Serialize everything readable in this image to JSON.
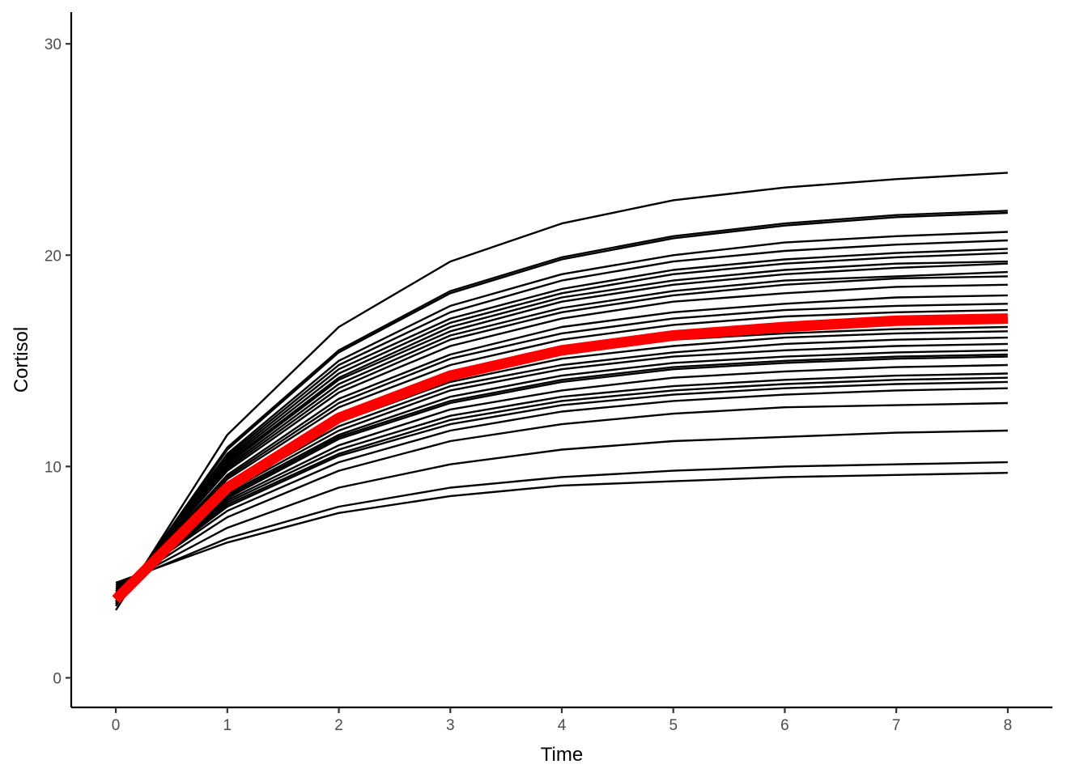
{
  "chart_data": {
    "type": "line",
    "title": "",
    "xlabel": "Time",
    "ylabel": "Cortisol",
    "x": [
      0,
      1,
      2,
      3,
      4,
      5,
      6,
      7,
      8
    ],
    "xlim": [
      -0.4,
      8.4
    ],
    "ylim": [
      -1.4,
      31.5
    ],
    "x_ticks": [
      "0",
      "1",
      "2",
      "3",
      "4",
      "5",
      "6",
      "7",
      "8"
    ],
    "y_ticks": [
      "0",
      "10",
      "20",
      "30"
    ],
    "y_tick_values": [
      0,
      10,
      20,
      30
    ],
    "grid": false,
    "legend": "none",
    "colors": {
      "series": "#000000",
      "mean": "#ff0000",
      "axis": "#000000",
      "tick_label": "#4d4d4d"
    },
    "series": [
      {
        "values": [
          3.2,
          11.5,
          16.6,
          19.7,
          21.5,
          22.6,
          23.2,
          23.6,
          23.9
        ]
      },
      {
        "values": [
          3.4,
          10.9,
          15.5,
          18.3,
          19.9,
          20.9,
          21.5,
          21.9,
          22.1
        ]
      },
      {
        "values": [
          3.4,
          10.8,
          15.4,
          18.2,
          19.8,
          20.8,
          21.4,
          21.8,
          22.0
        ]
      },
      {
        "values": [
          3.5,
          10.6,
          15.0,
          17.6,
          19.1,
          20.0,
          20.6,
          20.9,
          21.1
        ]
      },
      {
        "values": [
          3.5,
          10.5,
          14.8,
          17.3,
          18.8,
          19.7,
          20.2,
          20.5,
          20.7
        ]
      },
      {
        "values": [
          3.6,
          10.4,
          14.6,
          17.0,
          18.4,
          19.3,
          19.8,
          20.1,
          20.3
        ]
      },
      {
        "values": [
          3.6,
          10.3,
          14.4,
          16.8,
          18.2,
          19.1,
          19.6,
          19.9,
          20.1
        ]
      },
      {
        "values": [
          3.6,
          10.2,
          14.2,
          16.6,
          18.0,
          18.8,
          19.3,
          19.6,
          19.7
        ]
      },
      {
        "values": [
          3.7,
          10.1,
          14.1,
          16.4,
          17.8,
          18.6,
          19.1,
          19.4,
          19.6
        ]
      },
      {
        "values": [
          3.7,
          10.0,
          13.9,
          16.2,
          17.5,
          18.3,
          18.8,
          19.0,
          19.2
        ]
      },
      {
        "values": [
          3.7,
          9.9,
          13.7,
          16.0,
          17.3,
          18.1,
          18.6,
          18.9,
          19.0
        ]
      },
      {
        "values": [
          3.8,
          9.8,
          13.5,
          15.7,
          17.0,
          17.8,
          18.2,
          18.5,
          18.6
        ]
      },
      {
        "values": [
          3.8,
          9.6,
          13.2,
          15.3,
          16.6,
          17.3,
          17.7,
          18.0,
          18.1
        ]
      },
      {
        "values": [
          3.8,
          9.5,
          13.0,
          15.1,
          16.3,
          17.0,
          17.4,
          17.6,
          17.7
        ]
      },
      {
        "values": [
          3.9,
          9.4,
          12.8,
          14.8,
          16.0,
          16.7,
          17.1,
          17.3,
          17.4
        ]
      },
      {
        "values": [
          3.9,
          9.2,
          12.5,
          14.5,
          15.6,
          16.3,
          16.7,
          16.9,
          17.0
        ]
      },
      {
        "values": [
          3.9,
          9.1,
          12.3,
          14.2,
          15.3,
          16.0,
          16.3,
          16.5,
          16.6
        ]
      },
      {
        "values": [
          3.9,
          9.0,
          12.1,
          14.0,
          15.1,
          15.7,
          16.1,
          16.3,
          16.4
        ]
      },
      {
        "values": [
          4.0,
          8.9,
          11.9,
          13.8,
          14.8,
          15.4,
          15.8,
          16.0,
          16.1
        ]
      },
      {
        "values": [
          4.0,
          8.8,
          11.7,
          13.6,
          14.6,
          15.2,
          15.5,
          15.7,
          15.8
        ]
      },
      {
        "values": [
          4.0,
          8.7,
          11.5,
          13.3,
          14.3,
          14.9,
          15.2,
          15.4,
          15.5
        ]
      },
      {
        "values": [
          4.0,
          8.6,
          11.4,
          13.1,
          14.1,
          14.7,
          15.0,
          15.2,
          15.3
        ]
      },
      {
        "values": [
          4.0,
          8.5,
          11.3,
          13.0,
          14.0,
          14.6,
          14.9,
          15.1,
          15.2
        ]
      },
      {
        "values": [
          4.1,
          8.4,
          11.0,
          12.7,
          13.6,
          14.2,
          14.5,
          14.7,
          14.8
        ]
      },
      {
        "values": [
          4.1,
          8.3,
          10.8,
          12.4,
          13.3,
          13.8,
          14.1,
          14.3,
          14.4
        ]
      },
      {
        "values": [
          4.1,
          8.2,
          10.6,
          12.2,
          13.1,
          13.6,
          13.9,
          14.1,
          14.2
        ]
      },
      {
        "values": [
          4.1,
          8.1,
          10.5,
          12.0,
          12.9,
          13.4,
          13.7,
          13.9,
          14.0
        ]
      },
      {
        "values": [
          4.2,
          7.9,
          10.2,
          11.7,
          12.6,
          13.1,
          13.4,
          13.6,
          13.7
        ]
      },
      {
        "values": [
          4.2,
          7.6,
          9.8,
          11.2,
          12.0,
          12.5,
          12.8,
          12.9,
          13.0
        ]
      },
      {
        "values": [
          4.3,
          7.1,
          9.0,
          10.1,
          10.8,
          11.2,
          11.4,
          11.6,
          11.7
        ]
      },
      {
        "values": [
          4.4,
          6.6,
          8.1,
          9.0,
          9.5,
          9.8,
          10.0,
          10.1,
          10.2
        ]
      },
      {
        "values": [
          4.5,
          6.4,
          7.8,
          8.6,
          9.1,
          9.3,
          9.5,
          9.6,
          9.7
        ]
      }
    ],
    "mean_series": {
      "values": [
        3.7,
        9.0,
        12.3,
        14.3,
        15.5,
        16.2,
        16.6,
        16.9,
        17.0
      ]
    }
  }
}
